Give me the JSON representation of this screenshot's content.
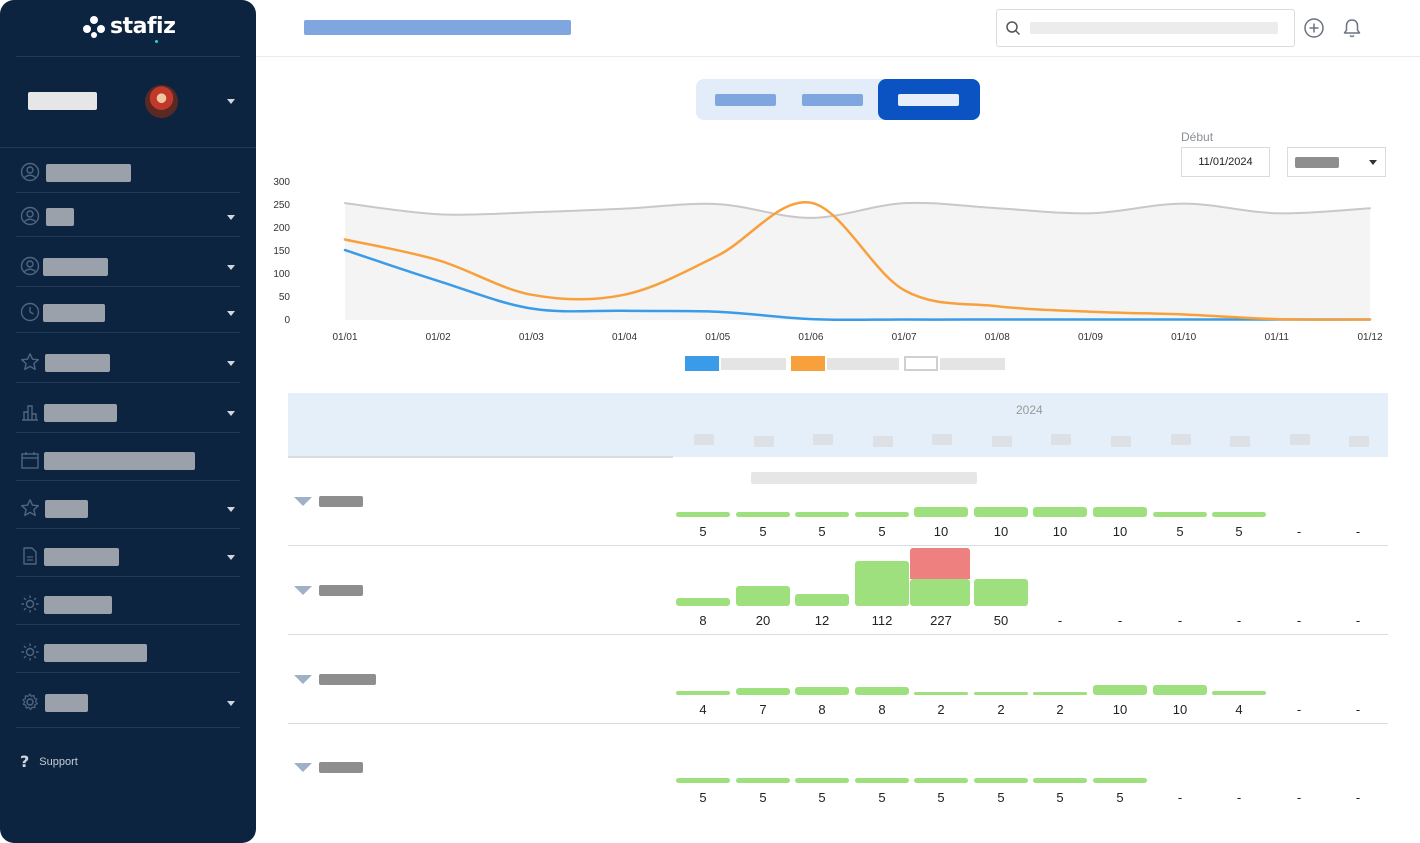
{
  "app": {
    "brand": "stafiz",
    "support_label": "Support",
    "colors": {
      "sidebar_bg": "#0d2440",
      "accent": "#0b52c2",
      "bar_green": "#9fe07e",
      "bar_red": "#ef8080",
      "series_blue": "#3a9be8",
      "series_orange": "#f8a03c",
      "series_gray": "#c8c8c8"
    }
  },
  "sidebar": {
    "user_caret_icon": "chevron-down-icon",
    "items": [
      {
        "icon": "user-circle-icon",
        "has_caret": false
      },
      {
        "icon": "user-circle-icon",
        "has_caret": true
      },
      {
        "icon": "user-circle-icon",
        "has_caret": true
      },
      {
        "icon": "clock-icon",
        "has_caret": true
      },
      {
        "icon": "star-icon",
        "has_caret": true
      },
      {
        "icon": "chart-columns-icon",
        "has_caret": true
      },
      {
        "icon": "calendar-icon",
        "has_caret": false
      },
      {
        "icon": "star-icon",
        "has_caret": true
      },
      {
        "icon": "document-icon",
        "has_caret": true
      },
      {
        "icon": "sun-icon",
        "has_caret": false
      },
      {
        "icon": "sun-icon",
        "has_caret": false
      },
      {
        "icon": "gear-icon",
        "has_caret": true
      }
    ]
  },
  "header": {
    "search_icon": "search-icon",
    "add_icon": "plus-circle-icon",
    "notifications_icon": "bell-icon"
  },
  "filters": {
    "start_label": "Début",
    "start_date": "11/01/2024"
  },
  "chart_data": {
    "type": "line",
    "x": [
      "01/01",
      "01/02",
      "01/03",
      "01/04",
      "01/05",
      "01/06",
      "01/07",
      "01/08",
      "01/09",
      "01/10",
      "01/11",
      "01/12"
    ],
    "y_ticks": [
      0,
      50,
      100,
      150,
      200,
      250,
      300
    ],
    "ylim": [
      0,
      300
    ],
    "series": [
      {
        "name": "",
        "color": "#3a9be8",
        "values": [
          152,
          85,
          25,
          20,
          18,
          2,
          1,
          1,
          1,
          1,
          1,
          1
        ]
      },
      {
        "name": "",
        "color": "#f8a03c",
        "values": [
          175,
          130,
          55,
          55,
          140,
          255,
          65,
          30,
          18,
          12,
          2,
          1
        ]
      },
      {
        "name": "",
        "color": "#c8c8c8",
        "values": [
          254,
          230,
          234,
          242,
          252,
          222,
          254,
          243,
          232,
          253,
          232,
          243
        ]
      }
    ],
    "legend_position": "bottom-center",
    "title": "",
    "xlabel": "",
    "ylabel": ""
  },
  "table": {
    "year": "2024",
    "rows": [
      {
        "values": [
          "5",
          "5",
          "5",
          "5",
          "10",
          "10",
          "10",
          "10",
          "5",
          "5",
          "-",
          "-"
        ],
        "bars": [
          5,
          5,
          5,
          5,
          10,
          10,
          10,
          10,
          5,
          5,
          null,
          null
        ],
        "overflow": [
          0,
          0,
          0,
          0,
          0,
          0,
          0,
          0,
          0,
          0,
          0,
          0
        ]
      },
      {
        "values": [
          "8",
          "20",
          "12",
          "112",
          "227",
          "50",
          "-",
          "-",
          "-",
          "-",
          "-",
          "-"
        ],
        "bars": [
          8,
          20,
          12,
          45,
          27,
          27,
          null,
          null,
          null,
          null,
          null,
          null
        ],
        "overflow": [
          0,
          0,
          0,
          0,
          45,
          0,
          0,
          0,
          0,
          0,
          0,
          0
        ]
      },
      {
        "values": [
          "4",
          "7",
          "8",
          "8",
          "2",
          "2",
          "2",
          "10",
          "10",
          "4",
          "-",
          "-"
        ],
        "bars": [
          4,
          7,
          8,
          8,
          2,
          2,
          2,
          10,
          10,
          4,
          null,
          null
        ],
        "overflow": [
          0,
          0,
          0,
          0,
          0,
          0,
          0,
          0,
          0,
          0,
          0,
          0
        ]
      },
      {
        "values": [
          "5",
          "5",
          "5",
          "5",
          "5",
          "5",
          "5",
          "5",
          "-",
          "-",
          "-",
          "-"
        ],
        "bars": [
          5,
          5,
          5,
          5,
          5,
          5,
          5,
          5,
          null,
          null,
          null,
          null
        ],
        "overflow": [
          0,
          0,
          0,
          0,
          0,
          0,
          0,
          0,
          0,
          0,
          0,
          0
        ]
      }
    ]
  }
}
